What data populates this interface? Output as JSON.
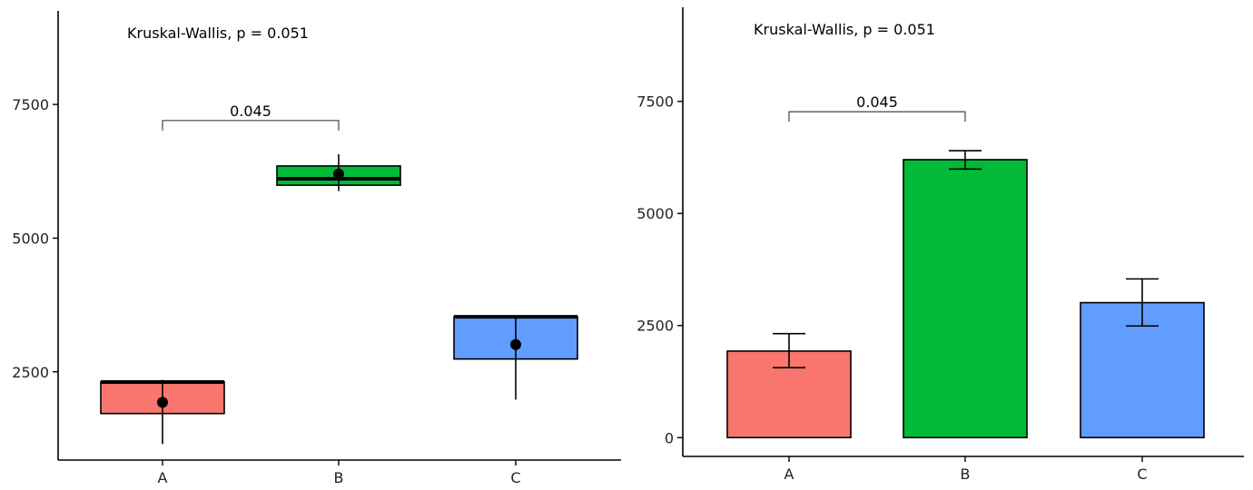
{
  "chart_data": [
    {
      "type": "box",
      "categories": [
        "A",
        "B",
        "C"
      ],
      "y_ticks": [
        2500,
        5000,
        7500
      ],
      "ylim": [
        850,
        9250
      ],
      "grid": false,
      "legend": "none",
      "series": [
        {
          "boxes": [
            {
              "category": "A",
              "q1": 1720,
              "median": 2310,
              "q3": 2310,
              "mean": 1930,
              "err_low": 1150,
              "err_high": 2350,
              "color": "#F8766D"
            },
            {
              "category": "B",
              "q1": 5990,
              "median": 6110,
              "q3": 6350,
              "mean": 6200,
              "err_low": 5880,
              "err_high": 6570,
              "color": "#00BA38"
            },
            {
              "category": "C",
              "q1": 2740,
              "median": 3530,
              "q3": 3530,
              "mean": 3010,
              "err_low": 1980,
              "err_high": 3530,
              "color": "#619CFF"
            }
          ]
        }
      ],
      "annotations": {
        "test_label": "Kruskal-Wallis, p = 0.051",
        "comparison": {
          "from": "A",
          "to": "B",
          "label": "0.045",
          "y": 7200
        }
      }
    },
    {
      "type": "bar",
      "categories": [
        "A",
        "B",
        "C"
      ],
      "values": [
        1930,
        6200,
        3010
      ],
      "errors": [
        [
          1560,
          2320
        ],
        [
          5990,
          6400
        ],
        [
          2490,
          3540
        ]
      ],
      "colors": [
        "#F8766D",
        "#00BA38",
        "#619CFF"
      ],
      "y_ticks": [
        0,
        2500,
        5000,
        7500
      ],
      "ylim": [
        -420,
        9600
      ],
      "grid": false,
      "legend": "none",
      "annotations": {
        "test_label": "Kruskal-Wallis, p = 0.051",
        "comparison": {
          "from": "A",
          "to": "B",
          "label": "0.045",
          "y": 7270
        }
      }
    }
  ]
}
